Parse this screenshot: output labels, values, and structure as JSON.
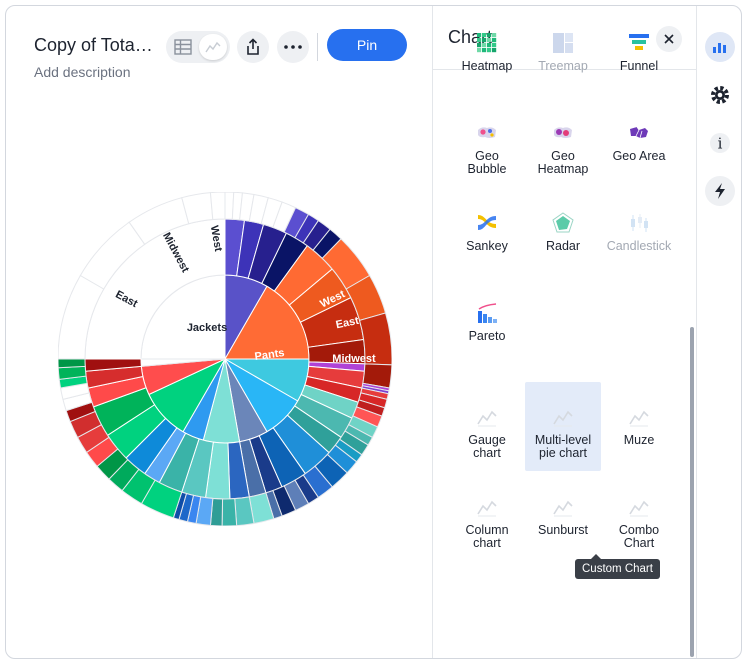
{
  "header": {
    "title": "Copy of Tota…",
    "description_placeholder": "Add description",
    "pin_label": "Pin"
  },
  "chart": {
    "center_label": "Jackets",
    "labels": [
      {
        "text": "West"
      },
      {
        "text": "Midwest"
      },
      {
        "text": "East"
      },
      {
        "text": "West"
      },
      {
        "text": "East"
      },
      {
        "text": "Midwest"
      },
      {
        "text": "Pants"
      }
    ]
  },
  "panel": {
    "title": "Chart",
    "close_icon": "close-icon",
    "chart_types": [
      {
        "label": "Heatmap",
        "disabled": false,
        "icon": "heatmap-icon"
      },
      {
        "label": "Treemap",
        "disabled": true,
        "icon": "treemap-icon"
      },
      {
        "label": "Funnel",
        "disabled": false,
        "icon": "funnel-icon"
      },
      {
        "label": "Geo Bubble",
        "disabled": false,
        "icon": "geo-bubble-icon"
      },
      {
        "label": "Geo Heatmap",
        "disabled": false,
        "icon": "geo-heatmap-icon"
      },
      {
        "label": "Geo Area",
        "disabled": false,
        "icon": "geo-area-icon"
      },
      {
        "label": "Sankey",
        "disabled": false,
        "icon": "sankey-icon"
      },
      {
        "label": "Radar",
        "disabled": false,
        "icon": "radar-icon"
      },
      {
        "label": "Candlestick",
        "disabled": true,
        "icon": "candlestick-icon"
      },
      {
        "label": "Pareto",
        "disabled": false,
        "icon": "pareto-icon"
      },
      {
        "label": "Gauge chart",
        "disabled": false,
        "icon": "custom-chart-icon"
      },
      {
        "label": "Multi-level pie chart",
        "disabled": false,
        "icon": "custom-chart-icon",
        "selected": true
      },
      {
        "label": "Muze",
        "disabled": false,
        "icon": "custom-chart-icon"
      },
      {
        "label": "Column chart",
        "disabled": false,
        "icon": "custom-chart-icon"
      },
      {
        "label": "Sunburst",
        "disabled": false,
        "icon": "custom-chart-icon"
      },
      {
        "label": "Combo Chart",
        "disabled": false,
        "icon": "custom-chart-icon"
      }
    ],
    "tooltip": "Custom Chart"
  },
  "rail": {
    "items": [
      "chart-config-icon",
      "settings-icon",
      "info-icon",
      "spotter-icon"
    ]
  },
  "colors": {
    "accent": "#2770ef"
  }
}
